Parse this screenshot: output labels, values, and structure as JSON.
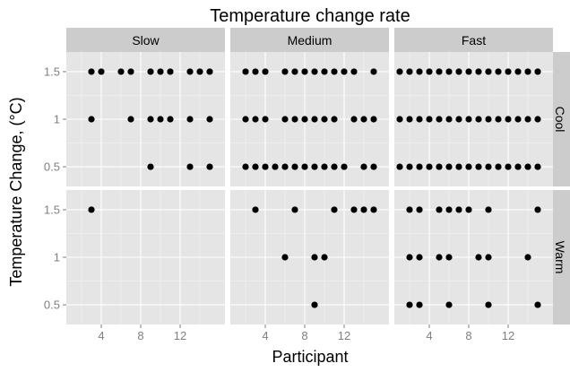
{
  "chart_data": {
    "type": "scatter",
    "title": "Temperature change rate",
    "xlabel": "Participant",
    "ylabel": "Temperature Change, (°C)",
    "xlim": [
      1,
      16
    ],
    "ylim": [
      0.35,
      1.65
    ],
    "x_ticks": [
      4,
      8,
      12
    ],
    "y_ticks": [
      0.5,
      1,
      1.5
    ],
    "y_tick_labels": [
      "0.5",
      "1",
      "1.5"
    ],
    "column_facets": [
      "Slow",
      "Medium",
      "Fast"
    ],
    "row_facets": [
      "Cool",
      "Warm"
    ],
    "grid": true,
    "panels": [
      {
        "column": "Slow",
        "row": "Cool",
        "points": [
          [
            3,
            1.5
          ],
          [
            4,
            1.5
          ],
          [
            6,
            1.5
          ],
          [
            7,
            1.5
          ],
          [
            9,
            1.5
          ],
          [
            10,
            1.5
          ],
          [
            11,
            1.5
          ],
          [
            13,
            1.5
          ],
          [
            14,
            1.5
          ],
          [
            15,
            1.5
          ],
          [
            3,
            1
          ],
          [
            7,
            1
          ],
          [
            9,
            1
          ],
          [
            10,
            1
          ],
          [
            11,
            1
          ],
          [
            13,
            1
          ],
          [
            15,
            1
          ],
          [
            9,
            0.5
          ],
          [
            13,
            0.5
          ],
          [
            15,
            0.5
          ]
        ]
      },
      {
        "column": "Medium",
        "row": "Cool",
        "points": [
          [
            2,
            1.5
          ],
          [
            3,
            1.5
          ],
          [
            4,
            1.5
          ],
          [
            6,
            1.5
          ],
          [
            7,
            1.5
          ],
          [
            8,
            1.5
          ],
          [
            9,
            1.5
          ],
          [
            10,
            1.5
          ],
          [
            11,
            1.5
          ],
          [
            12,
            1.5
          ],
          [
            13,
            1.5
          ],
          [
            15,
            1.5
          ],
          [
            2,
            1
          ],
          [
            3,
            1
          ],
          [
            4,
            1
          ],
          [
            6,
            1
          ],
          [
            7,
            1
          ],
          [
            8,
            1
          ],
          [
            9,
            1
          ],
          [
            10,
            1
          ],
          [
            11,
            1
          ],
          [
            13,
            1
          ],
          [
            14,
            1
          ],
          [
            15,
            1
          ],
          [
            2,
            0.5
          ],
          [
            3,
            0.5
          ],
          [
            4,
            0.5
          ],
          [
            5,
            0.5
          ],
          [
            6,
            0.5
          ],
          [
            7,
            0.5
          ],
          [
            8,
            0.5
          ],
          [
            9,
            0.5
          ],
          [
            10,
            0.5
          ],
          [
            11,
            0.5
          ],
          [
            12,
            0.5
          ],
          [
            14,
            0.5
          ],
          [
            15,
            0.5
          ]
        ]
      },
      {
        "column": "Fast",
        "row": "Cool",
        "points": [
          [
            1,
            1.5
          ],
          [
            2,
            1.5
          ],
          [
            3,
            1.5
          ],
          [
            4,
            1.5
          ],
          [
            5,
            1.5
          ],
          [
            6,
            1.5
          ],
          [
            7,
            1.5
          ],
          [
            8,
            1.5
          ],
          [
            9,
            1.5
          ],
          [
            10,
            1.5
          ],
          [
            11,
            1.5
          ],
          [
            12,
            1.5
          ],
          [
            13,
            1.5
          ],
          [
            14,
            1.5
          ],
          [
            15,
            1.5
          ],
          [
            1,
            1
          ],
          [
            2,
            1
          ],
          [
            3,
            1
          ],
          [
            4,
            1
          ],
          [
            5,
            1
          ],
          [
            6,
            1
          ],
          [
            7,
            1
          ],
          [
            8,
            1
          ],
          [
            9,
            1
          ],
          [
            10,
            1
          ],
          [
            11,
            1
          ],
          [
            12,
            1
          ],
          [
            13,
            1
          ],
          [
            14,
            1
          ],
          [
            15,
            1
          ],
          [
            1,
            0.5
          ],
          [
            2,
            0.5
          ],
          [
            3,
            0.5
          ],
          [
            4,
            0.5
          ],
          [
            5,
            0.5
          ],
          [
            6,
            0.5
          ],
          [
            7,
            0.5
          ],
          [
            8,
            0.5
          ],
          [
            9,
            0.5
          ],
          [
            10,
            0.5
          ],
          [
            11,
            0.5
          ],
          [
            12,
            0.5
          ],
          [
            13,
            0.5
          ],
          [
            14,
            0.5
          ],
          [
            15,
            0.5
          ]
        ]
      },
      {
        "column": "Slow",
        "row": "Warm",
        "points": [
          [
            3,
            1.5
          ]
        ]
      },
      {
        "column": "Medium",
        "row": "Warm",
        "points": [
          [
            3,
            1.5
          ],
          [
            7,
            1.5
          ],
          [
            11,
            1.5
          ],
          [
            13,
            1.5
          ],
          [
            14,
            1.5
          ],
          [
            15,
            1.5
          ],
          [
            6,
            1
          ],
          [
            9,
            1
          ],
          [
            10,
            1
          ],
          [
            9,
            0.5
          ]
        ]
      },
      {
        "column": "Fast",
        "row": "Warm",
        "points": [
          [
            2,
            1.5
          ],
          [
            3,
            1.5
          ],
          [
            5,
            1.5
          ],
          [
            6,
            1.5
          ],
          [
            7,
            1.5
          ],
          [
            8,
            1.5
          ],
          [
            10,
            1.5
          ],
          [
            15,
            1.5
          ],
          [
            2,
            1
          ],
          [
            3,
            1
          ],
          [
            5,
            1
          ],
          [
            6,
            1
          ],
          [
            9,
            1
          ],
          [
            10,
            1
          ],
          [
            14,
            1
          ],
          [
            2,
            0.5
          ],
          [
            3,
            0.5
          ],
          [
            6,
            0.5
          ],
          [
            10,
            0.5
          ],
          [
            15,
            0.5
          ]
        ]
      }
    ]
  }
}
